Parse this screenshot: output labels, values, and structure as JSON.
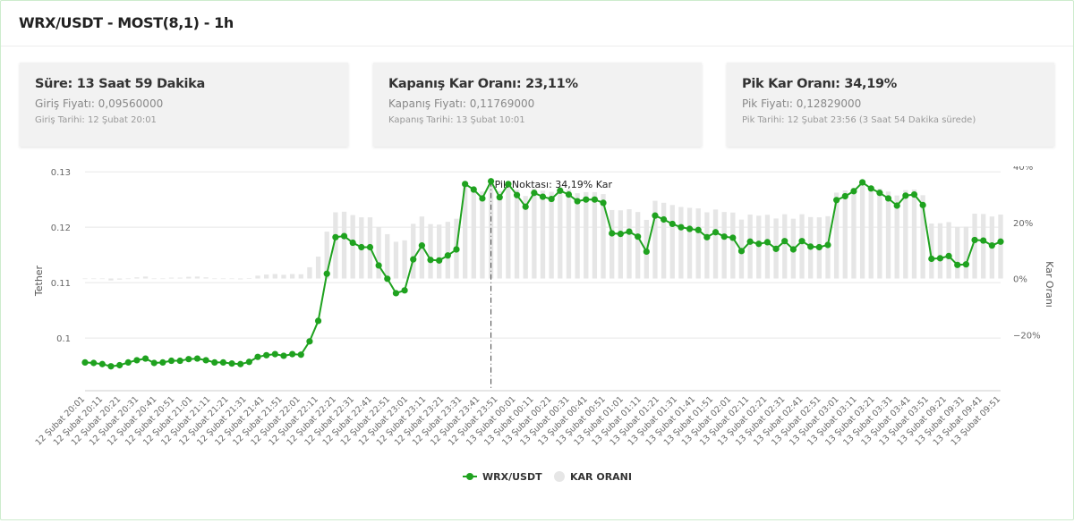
{
  "header": {
    "title": "WRX/USDT - MOST(8,1) - 1h"
  },
  "cards": [
    {
      "title": "Süre: 13 Saat 59 Dakika",
      "sub": "Giriş Fiyatı: 0,09560000",
      "date": "Giriş Tarihi: 12 Şubat 20:01"
    },
    {
      "title": "Kapanış Kar Oranı: 23,11%",
      "sub": "Kapanış Fiyatı: 0,11769000",
      "date": "Kapanış Tarihi: 13 Şubat 10:01"
    },
    {
      "title": "Pik Kar Oranı: 34,19%",
      "sub": "Pik Fiyatı: 0,12829000",
      "date": "Pik Tarihi: 12 Şubat 23:56 (3 Saat 54 Dakika sürede)"
    }
  ],
  "colors": {
    "line": "#1fa21f",
    "bars": "#e6e6e6",
    "grid": "#e8e8e8"
  },
  "chart_data": {
    "type": "line",
    "ylabel": "Tether",
    "y2label": "Kar Oranı",
    "y_ticks": [
      "0.13",
      "0.12",
      "0.11",
      "0.1"
    ],
    "y2_ticks": [
      "40%",
      "20%",
      "0%",
      "−20%"
    ],
    "ylim": [
      0.0905,
      0.131
    ],
    "y2lim": [
      -40,
      40
    ],
    "x_tick_labels": [
      "12 Şubat 20:01",
      "12 Şubat 20:11",
      "12 Şubat 20:21",
      "12 Şubat 20:31",
      "12 Şubat 20:41",
      "12 Şubat 20:51",
      "12 Şubat 21:01",
      "12 Şubat 21:11",
      "12 Şubat 21:21",
      "12 Şubat 21:31",
      "12 Şubat 21:41",
      "12 Şubat 21:51",
      "12 Şubat 22:01",
      "12 Şubat 22:11",
      "12 Şubat 22:21",
      "12 Şubat 22:31",
      "12 Şubat 22:41",
      "12 Şubat 22:51",
      "12 Şubat 23:01",
      "12 Şubat 23:11",
      "12 Şubat 23:21",
      "12 Şubat 23:31",
      "12 Şubat 23:41",
      "12 Şubat 23:51",
      "13 Şubat 00:01",
      "13 Şubat 00:11",
      "13 Şubat 00:21",
      "13 Şubat 00:31",
      "13 Şubat 00:41",
      "13 Şubat 00:51",
      "13 Şubat 01:01",
      "13 Şubat 01:11",
      "13 Şubat 01:21",
      "13 Şubat 01:31",
      "13 Şubat 01:41",
      "13 Şubat 01:51",
      "13 Şubat 02:01",
      "13 Şubat 02:11",
      "13 Şubat 02:21",
      "13 Şubat 02:31",
      "13 Şubat 02:41",
      "13 Şubat 02:51",
      "13 Şubat 03:01",
      "13 Şubat 03:11",
      "13 Şubat 03:21",
      "13 Şubat 03:31",
      "13 Şubat 03:41",
      "13 Şubat 03:51",
      "13 Şubat 09:21",
      "13 Şubat 09:31",
      "13 Şubat 09:41",
      "13 Şubat 09:51"
    ],
    "series": [
      {
        "name": "WRX/USDT",
        "axis": "left",
        "type": "line",
        "values": [
          0.0956,
          0.0955,
          0.0953,
          0.0949,
          0.0951,
          0.0956,
          0.096,
          0.0963,
          0.0955,
          0.0956,
          0.0959,
          0.0959,
          0.0962,
          0.0963,
          0.096,
          0.0956,
          0.0956,
          0.0954,
          0.0953,
          0.0957,
          0.0966,
          0.0969,
          0.0971,
          0.0968,
          0.0971,
          0.097,
          0.0994,
          0.1031,
          0.1116,
          0.1182,
          0.1184,
          0.1172,
          0.1164,
          0.1164,
          0.1131,
          0.1107,
          0.1081,
          0.1086,
          0.1142,
          0.1167,
          0.1141,
          0.114,
          0.1149,
          0.116,
          0.1278,
          0.1268,
          0.1252,
          0.1283,
          0.1254,
          0.1278,
          0.1258,
          0.1237,
          0.1262,
          0.1255,
          0.1251,
          0.1266,
          0.1259,
          0.1247,
          0.125,
          0.125,
          0.1244,
          0.1189,
          0.1188,
          0.1192,
          0.1183,
          0.1156,
          0.1221,
          0.1214,
          0.1206,
          0.12,
          0.1197,
          0.1195,
          0.1182,
          0.1191,
          0.1183,
          0.1181,
          0.1157,
          0.1174,
          0.117,
          0.1173,
          0.1161,
          0.1175,
          0.116,
          0.1175,
          0.1165,
          0.1164,
          0.1168,
          0.1249,
          0.1256,
          0.1265,
          0.1281,
          0.127,
          0.1262,
          0.1252,
          0.1239,
          0.1257,
          0.1259,
          0.124,
          0.1143,
          0.1144,
          0.1148,
          0.1132,
          0.1133,
          0.1177,
          0.1176,
          0.1167,
          0.1174
        ]
      },
      {
        "name": "KAR ORANI",
        "axis": "right",
        "type": "bar",
        "values": [
          0,
          0,
          -0.2,
          -0.7,
          -0.4,
          0,
          0.4,
          0.7,
          0,
          0,
          0.3,
          0.3,
          0.6,
          0.7,
          0.4,
          0,
          0,
          -0.2,
          -0.3,
          0.1,
          1.0,
          1.4,
          1.6,
          1.3,
          1.6,
          1.5,
          4.0,
          7.8,
          16.7,
          23.6,
          23.8,
          22.6,
          21.8,
          21.8,
          18.3,
          15.8,
          13.1,
          13.6,
          19.5,
          22.1,
          19.4,
          19.2,
          20.2,
          21.3,
          33.7,
          32.6,
          31.0,
          34.2,
          31.2,
          33.7,
          31.6,
          29.4,
          32.0,
          31.3,
          30.9,
          32.4,
          31.7,
          30.4,
          30.8,
          30.8,
          30.1,
          24.4,
          24.3,
          24.7,
          23.7,
          20.9,
          27.7,
          27.0,
          26.2,
          25.5,
          25.2,
          25.0,
          23.6,
          24.6,
          23.7,
          23.5,
          21.0,
          22.8,
          22.4,
          22.7,
          21.4,
          22.9,
          21.3,
          22.9,
          21.9,
          21.8,
          22.2,
          30.6,
          31.4,
          32.3,
          34.0,
          32.8,
          32.0,
          31.0,
          29.6,
          31.5,
          31.7,
          29.7,
          19.6,
          19.7,
          20.1,
          18.4,
          18.5,
          23.1,
          23.0,
          22.1,
          22.8
        ]
      }
    ],
    "annotation": {
      "label": "Pik Noktası: 34,19% Kar",
      "index": 47
    },
    "legend": {
      "placement": "bottom",
      "items": [
        "WRX/USDT",
        "KAR ORANI"
      ]
    },
    "grid": true
  }
}
